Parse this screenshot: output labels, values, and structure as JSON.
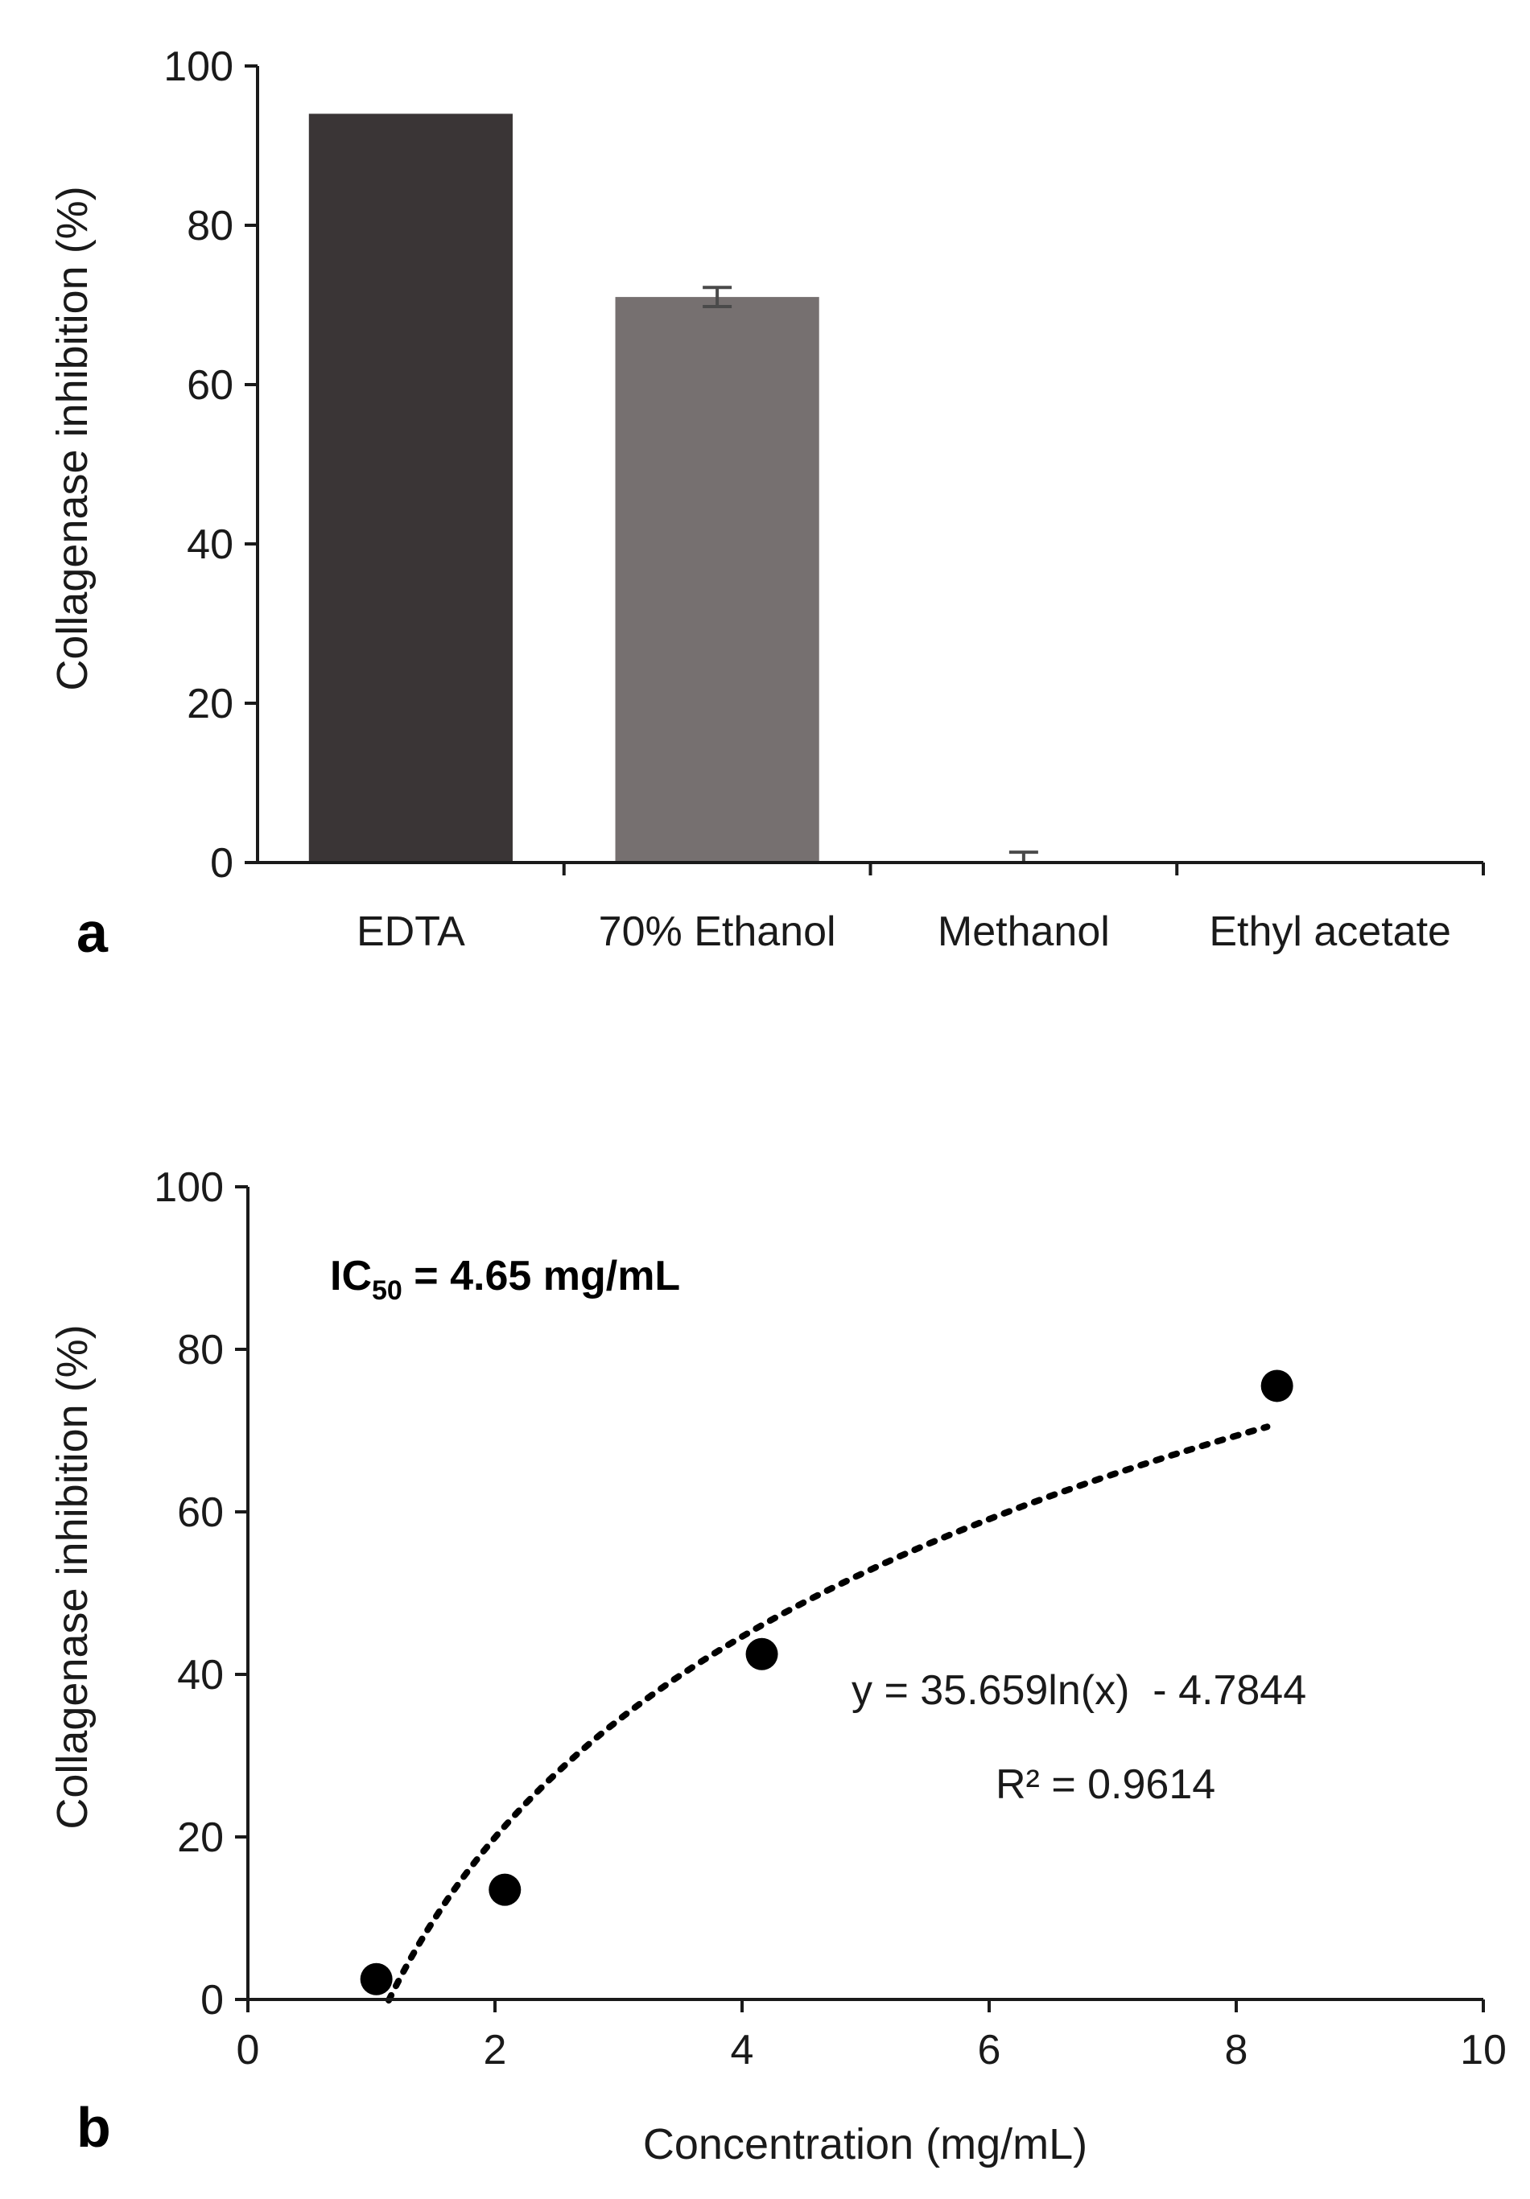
{
  "chart_data": [
    {
      "panel": "a",
      "type": "bar",
      "categories": [
        "EDTA",
        "70% Ethanol",
        "Methanol",
        "Ethyl acetate"
      ],
      "values": [
        94,
        71,
        0,
        0
      ],
      "errors": [
        0,
        1.2,
        1.3,
        0
      ],
      "colors": [
        "#3a3536",
        "#767070",
        "#767070",
        "#767070"
      ],
      "ylabel": "Collagenase inhibition  (%)",
      "xlabel": "",
      "ylim": [
        0,
        100
      ],
      "yticks": [
        "0",
        "20",
        "40",
        "60",
        "80",
        "100"
      ],
      "grid": false
    },
    {
      "panel": "b",
      "type": "scatter",
      "points": [
        {
          "x": 1.04,
          "y": 2.5
        },
        {
          "x": 2.08,
          "y": 13.5
        },
        {
          "x": 4.16,
          "y": 42.5
        },
        {
          "x": 8.33,
          "y": 75.5
        }
      ],
      "trendline": {
        "type": "logarithmic",
        "a": 35.659,
        "b": -4.7844,
        "x_start": 1.14,
        "x_end": 8.25
      },
      "xlabel": "Concentration  (mg/mL)",
      "ylabel": "Collagenase inhibition  (%)",
      "xlim": [
        0,
        10
      ],
      "ylim": [
        0,
        100
      ],
      "xticks": [
        "0",
        "2",
        "4",
        "6",
        "8",
        "10"
      ],
      "yticks": [
        "0",
        "20",
        "40",
        "60",
        "80",
        "100"
      ],
      "equation": "y = 35.659ln(x)  - 4.7844",
      "r_squared": "R² = 0.9614",
      "ic50": {
        "prefix": "IC",
        "subscript": "50",
        "rest": " = 4.65 mg/mL"
      },
      "grid": false
    }
  ],
  "panel_labels": {
    "a": "a",
    "b": "b"
  }
}
